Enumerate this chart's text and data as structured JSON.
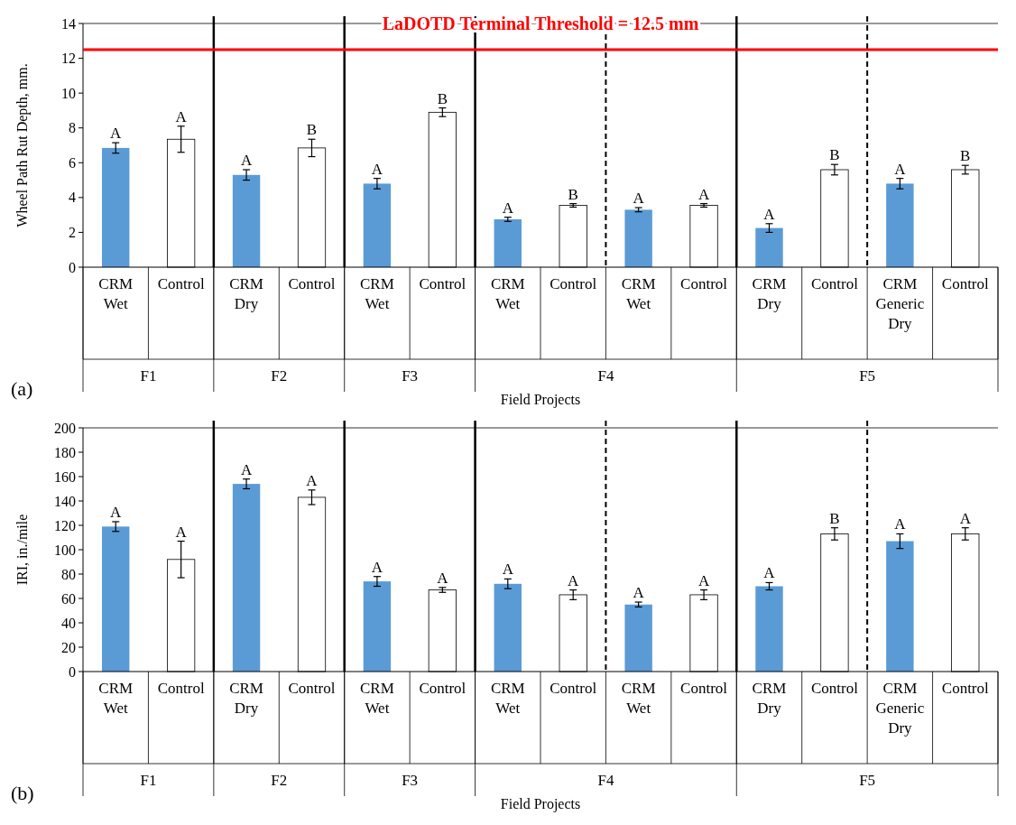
{
  "chart_data": [
    {
      "type": "bar",
      "title": "(a)",
      "xlabel": "Field Projects",
      "ylabel": "Wheel Path Rut Depth, mm.",
      "categories": [
        "CRM Wet",
        "Control",
        "CRM Dry",
        "Control",
        "CRM Wet",
        "Control",
        "CRM Wet",
        "Control",
        "CRM Wet",
        "Control",
        "CRM Dry",
        "Control",
        "CRM Generic Dry",
        "Control"
      ],
      "values": [
        6.85,
        7.35,
        5.3,
        6.85,
        4.8,
        8.9,
        2.75,
        3.55,
        3.3,
        3.55,
        2.25,
        5.6,
        4.8,
        5.6
      ],
      "errors": [
        0.3,
        0.75,
        0.3,
        0.5,
        0.3,
        0.25,
        0.12,
        0.1,
        0.12,
        0.1,
        0.25,
        0.3,
        0.3,
        0.25
      ],
      "colors": [
        "#5b9bd5",
        "#ffffff",
        "#5b9bd5",
        "#ffffff",
        "#5b9bd5",
        "#ffffff",
        "#5b9bd5",
        "#ffffff",
        "#5b9bd5",
        "#ffffff",
        "#5b9bd5",
        "#ffffff",
        "#5b9bd5",
        "#ffffff"
      ],
      "value_labels": [
        "A",
        "A",
        "A",
        "B",
        "A",
        "B",
        "A",
        "B",
        "A",
        "A",
        "A",
        "B",
        "A",
        "B"
      ],
      "ylim": [
        0,
        14
      ],
      "yticks": [
        0,
        2,
        4,
        6,
        8,
        10,
        12,
        14
      ],
      "ref_lines": [
        {
          "axis": "y",
          "value": 12.5,
          "label": "LaDOTD Terminal Threshold = 12.5 mm",
          "color": "#ff0000",
          "line_style": "solid"
        }
      ],
      "annotations": [
        "F1",
        "F2",
        "F3",
        "F4",
        "F5"
      ],
      "grid": false
    },
    {
      "type": "bar",
      "title": "(b)",
      "xlabel": "Field Projects",
      "ylabel": "IRI, in./mile",
      "categories": [
        "CRM Wet",
        "Control",
        "CRM Dry",
        "Control",
        "CRM Wet",
        "Control",
        "CRM Wet",
        "Control",
        "CRM Wet",
        "Control",
        "CRM Dry",
        "Control",
        "CRM Generic Dry",
        "Control"
      ],
      "values": [
        119,
        92,
        154,
        143,
        74,
        67,
        72,
        63,
        55,
        63,
        70,
        113,
        107,
        113
      ],
      "errors": [
        4,
        15,
        4,
        6,
        4,
        2,
        4,
        4,
        2,
        4,
        3,
        5,
        6,
        5
      ],
      "colors": [
        "#5b9bd5",
        "#ffffff",
        "#5b9bd5",
        "#ffffff",
        "#5b9bd5",
        "#ffffff",
        "#5b9bd5",
        "#ffffff",
        "#5b9bd5",
        "#ffffff",
        "#5b9bd5",
        "#ffffff",
        "#5b9bd5",
        "#ffffff"
      ],
      "value_labels": [
        "A",
        "A",
        "A",
        "A",
        "A",
        "A",
        "A",
        "A",
        "A",
        "A",
        "A",
        "B",
        "A",
        "A"
      ],
      "ylim": [
        0,
        200
      ],
      "yticks": [
        0,
        20,
        40,
        60,
        80,
        100,
        120,
        140,
        160,
        180,
        200
      ],
      "annotations": [
        "F1",
        "F2",
        "F3",
        "F4",
        "F5"
      ],
      "grid": false
    }
  ]
}
